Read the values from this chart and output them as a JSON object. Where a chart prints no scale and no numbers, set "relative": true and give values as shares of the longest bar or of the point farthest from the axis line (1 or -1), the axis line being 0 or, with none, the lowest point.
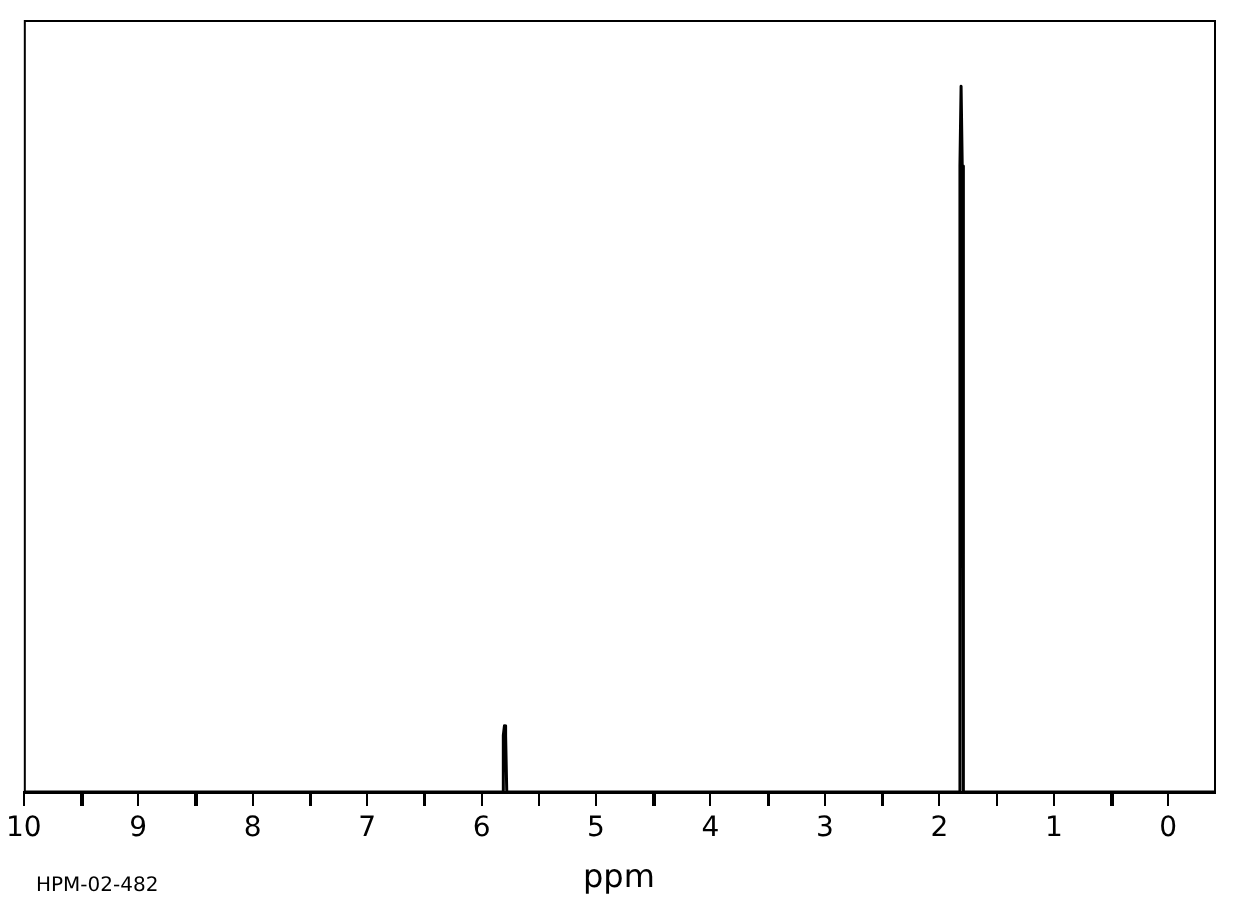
{
  "chart_data": {
    "type": "line",
    "relative": true,
    "xlabel": "ppm",
    "annotations": [
      "HPM-02-482"
    ],
    "xlim": [
      10,
      -0.4
    ],
    "xticks": [
      10,
      {
        "value": 9.5,
        "label": null
      },
      9,
      {
        "value": 8.5,
        "label": null
      },
      8,
      {
        "value": 7.5,
        "label": null
      },
      7,
      {
        "value": 6.5,
        "label": null
      },
      6,
      {
        "value": 5.5,
        "label": null
      },
      5,
      {
        "value": 4.5,
        "label": null
      },
      4,
      {
        "value": 3.5,
        "label": null
      },
      3,
      {
        "value": 2.5,
        "label": null
      },
      2,
      {
        "value": 1.5,
        "label": null
      },
      1,
      {
        "value": 0.5,
        "label": null
      },
      0
    ],
    "series": [
      {
        "color": "#000000",
        "x": [
          10,
          5.82,
          5.81,
          5.8,
          5.79,
          5.78,
          1.83,
          1.82,
          1.81,
          1.8,
          1.79,
          -0.4
        ],
        "values": [
          0,
          0,
          0.08,
          0.094,
          0.08,
          0,
          0,
          0.887,
          1,
          0.887,
          0,
          0
        ]
      }
    ],
    "marker": "none",
    "grid": false,
    "legend": false
  }
}
